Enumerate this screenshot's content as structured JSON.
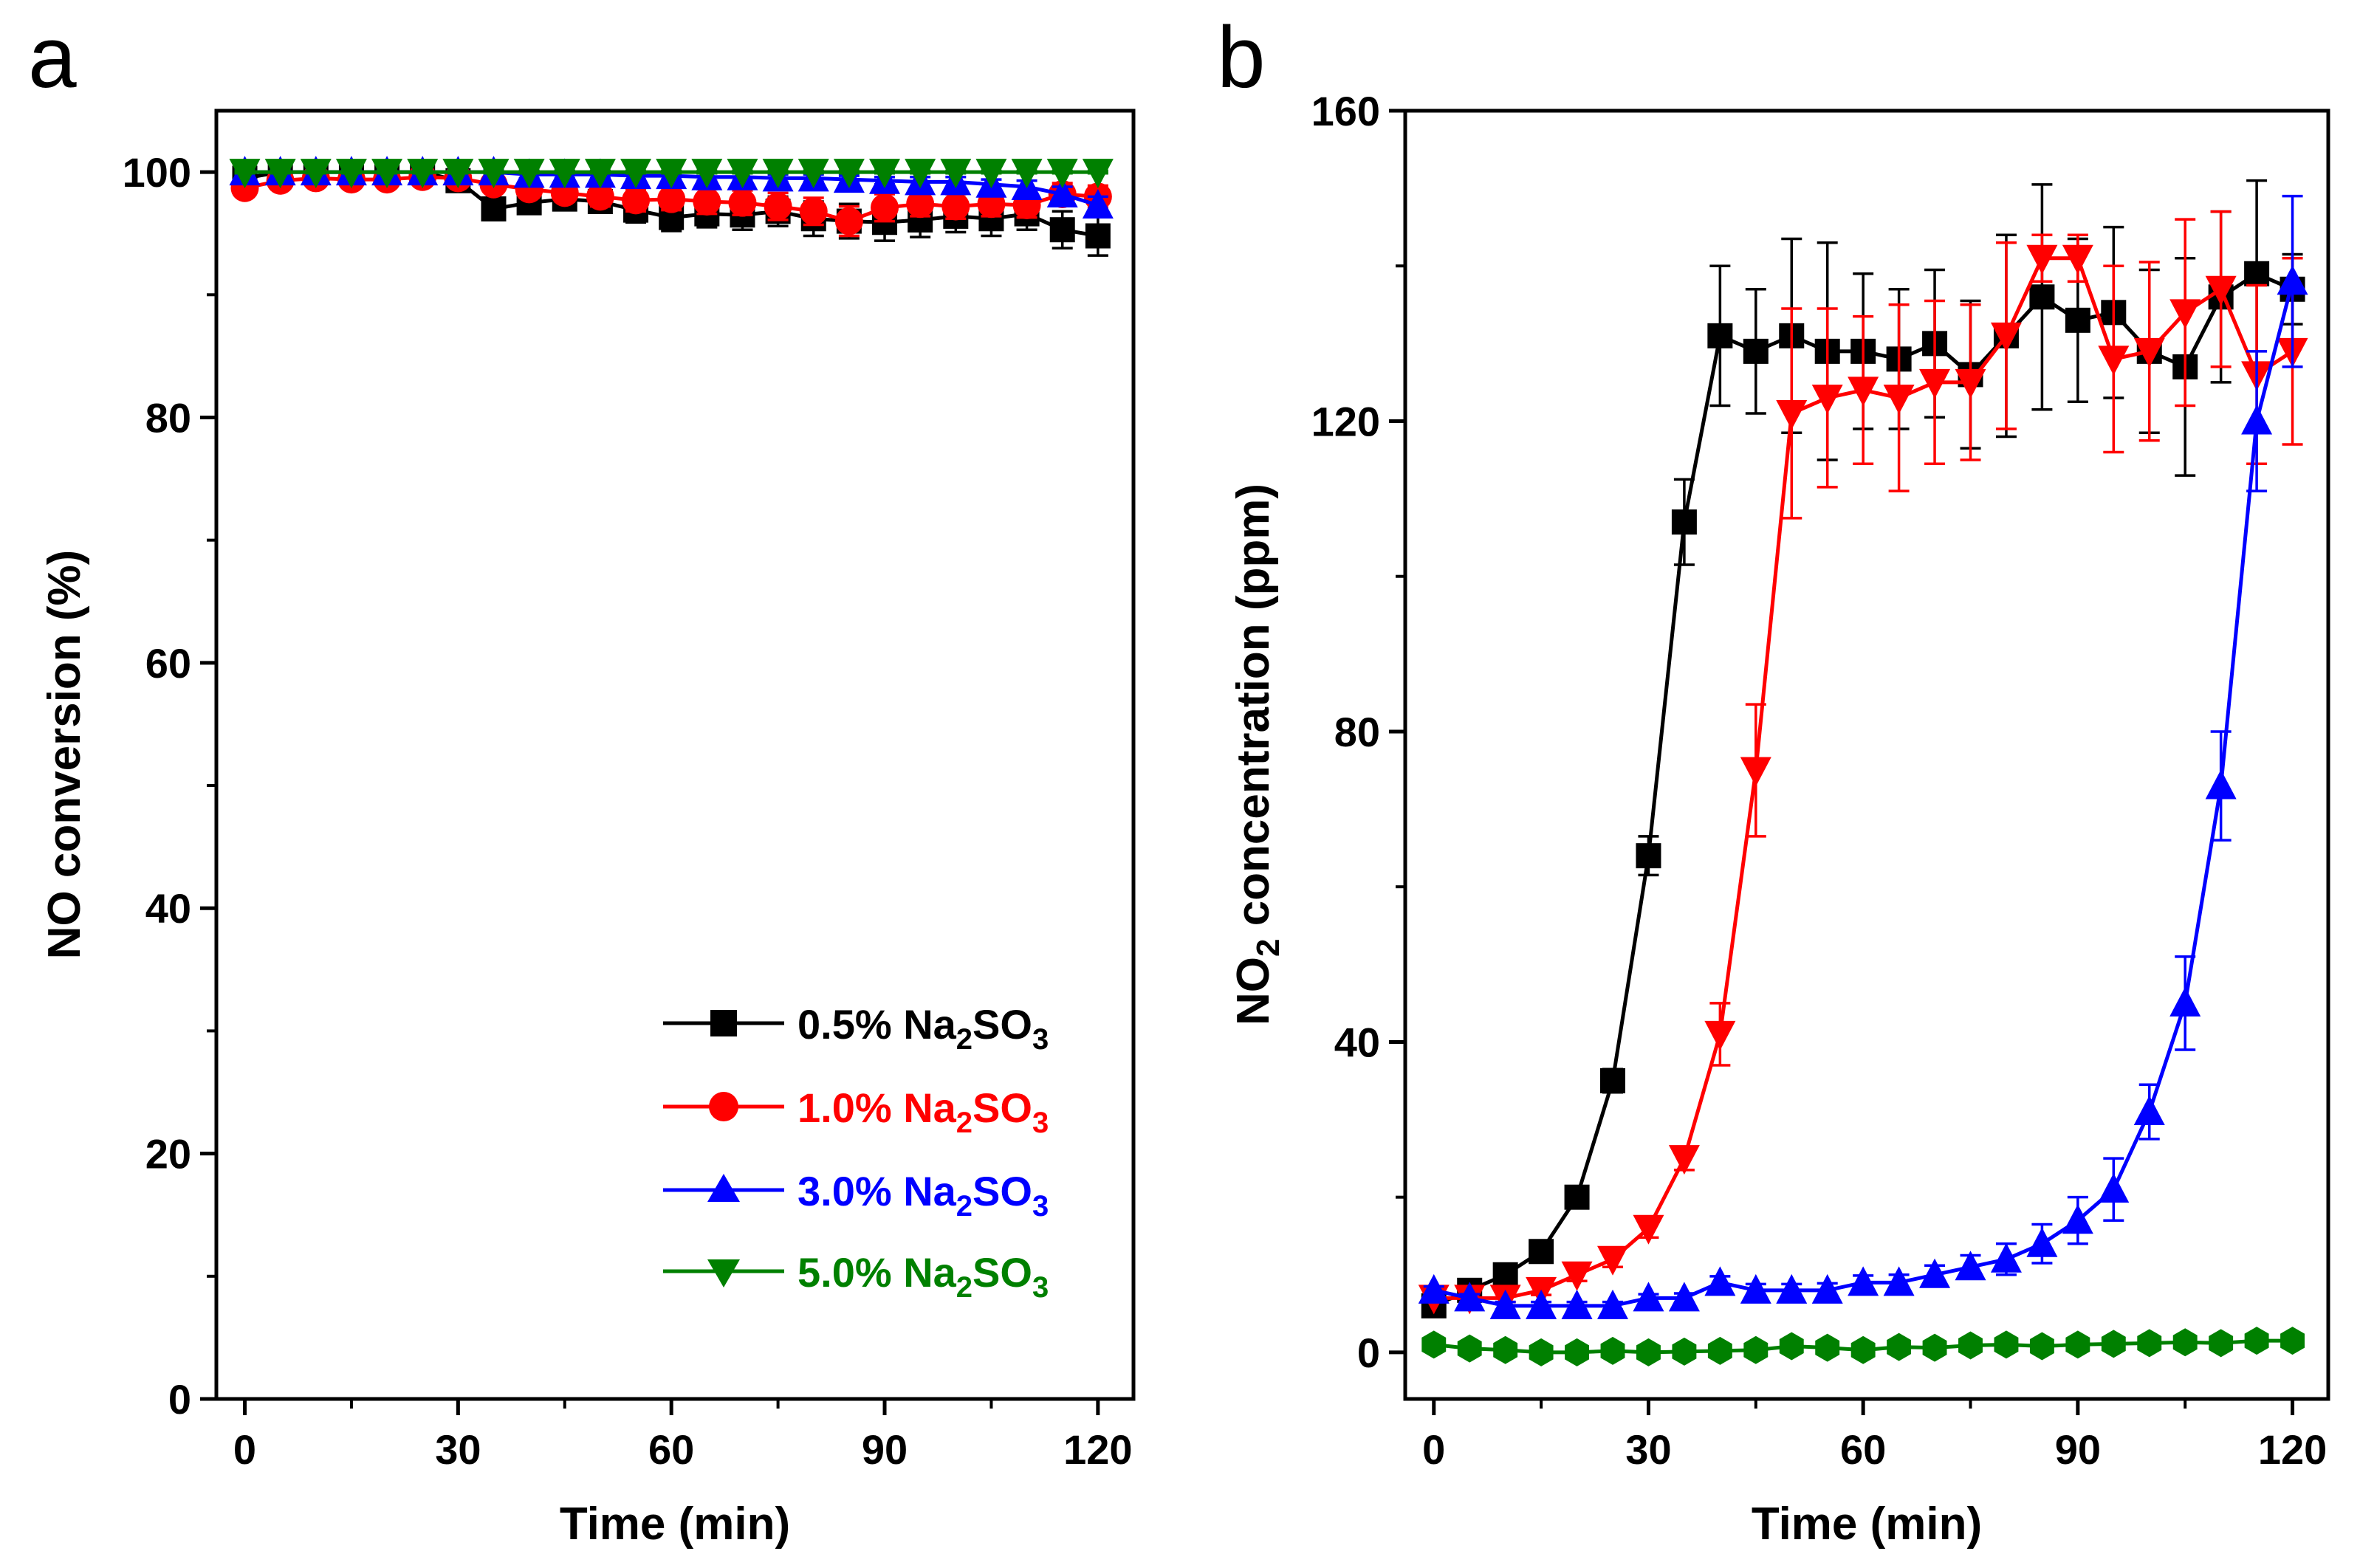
{
  "chart_data": [
    {
      "panel": "a",
      "type": "line",
      "title": "",
      "xlabel": "Time (min)",
      "ylabel": "NO conversion (%)",
      "xlim": [
        -4,
        125
      ],
      "ylim": [
        0,
        105
      ],
      "xticks": [
        0,
        30,
        60,
        90,
        120
      ],
      "yticks": [
        0,
        20,
        40,
        60,
        80,
        100
      ],
      "x": [
        0,
        5,
        10,
        15,
        20,
        25,
        30,
        35,
        40,
        45,
        50,
        55,
        60,
        65,
        70,
        75,
        80,
        85,
        90,
        95,
        100,
        105,
        110,
        115,
        120
      ],
      "legend_position": "bottom-right",
      "series": [
        {
          "name": "0.5% Na2SO3",
          "label_parts": {
            "pre": "0.5% Na",
            "sub1": "2",
            "mid": "SO",
            "sub2": "3"
          },
          "color": "#000000",
          "marker": "square",
          "values": [
            99.5,
            100,
            100,
            100,
            100,
            100,
            99.3,
            97.0,
            97.5,
            97.8,
            97.6,
            96.9,
            96.3,
            96.6,
            96.5,
            96.8,
            96.2,
            96.0,
            95.9,
            96.1,
            96.4,
            96.2,
            96.6,
            95.3,
            94.8
          ],
          "errors": [
            0.5,
            0.5,
            0.5,
            0.5,
            0.5,
            0.5,
            0.6,
            0.9,
            0.8,
            0.8,
            0.9,
            1.0,
            1.1,
            1.1,
            1.2,
            1.2,
            1.4,
            1.4,
            1.5,
            1.4,
            1.3,
            1.4,
            1.3,
            1.5,
            1.6
          ]
        },
        {
          "name": "1.0% Na2SO3",
          "label_parts": {
            "pre": "1.0% Na",
            "sub1": "2",
            "mid": "SO",
            "sub2": "3"
          },
          "color": "#ff0000",
          "marker": "circle",
          "values": [
            98.7,
            99.3,
            99.5,
            99.4,
            99.4,
            99.6,
            99.5,
            99.0,
            98.6,
            98.3,
            98.0,
            97.7,
            97.8,
            97.6,
            97.5,
            97.2,
            96.8,
            96.0,
            97.1,
            97.4,
            97.2,
            97.4,
            97.3,
            98.2,
            98.0
          ],
          "errors": [
            0.4,
            0.4,
            0.4,
            0.4,
            0.4,
            0.4,
            0.4,
            0.6,
            0.7,
            0.7,
            0.8,
            0.9,
            0.9,
            1.0,
            1.0,
            1.1,
            1.1,
            1.2,
            1.1,
            1.0,
            1.0,
            1.0,
            1.0,
            0.9,
            0.9
          ]
        },
        {
          "name": "3.0% Na2SO3",
          "label_parts": {
            "pre": "3.0% Na",
            "sub1": "2",
            "mid": "SO",
            "sub2": "3"
          },
          "color": "#0000ff",
          "marker": "triangle-up",
          "values": [
            100,
            100,
            100,
            100,
            100,
            100,
            100,
            100,
            99.8,
            99.8,
            99.8,
            99.7,
            99.7,
            99.6,
            99.6,
            99.5,
            99.5,
            99.4,
            99.3,
            99.2,
            99.2,
            99.0,
            98.8,
            98.2,
            97.3
          ],
          "errors": [
            0.2,
            0.2,
            0.2,
            0.2,
            0.2,
            0.2,
            0.2,
            0.2,
            0.3,
            0.3,
            0.3,
            0.3,
            0.3,
            0.3,
            0.3,
            0.3,
            0.3,
            0.3,
            0.3,
            0.4,
            0.4,
            0.4,
            0.5,
            0.6,
            0.7
          ]
        },
        {
          "name": "5.0% Na2SO3",
          "label_parts": {
            "pre": "5.0% Na",
            "sub1": "2",
            "mid": "SO",
            "sub2": "3"
          },
          "color": "#008000",
          "marker": "triangle-down",
          "values": [
            100,
            100,
            100,
            100,
            100,
            100,
            100,
            100,
            100,
            100,
            100,
            100,
            100,
            100,
            100,
            100,
            100,
            100,
            100,
            100,
            100,
            100,
            100,
            100,
            100
          ],
          "errors": [
            0.1,
            0.1,
            0.1,
            0.1,
            0.1,
            0.1,
            0.1,
            0.1,
            0.1,
            0.1,
            0.1,
            0.1,
            0.1,
            0.1,
            0.1,
            0.1,
            0.1,
            0.1,
            0.1,
            0.1,
            0.1,
            0.1,
            0.1,
            0.1,
            0.1
          ]
        }
      ]
    },
    {
      "panel": "b",
      "type": "line",
      "title": "",
      "xlabel": "Time (min)",
      "ylabel_parts": {
        "pre": "NO",
        "sub": "2",
        "post": " concentration (ppm)"
      },
      "xlim": [
        -4,
        125
      ],
      "ylim": [
        -6,
        160
      ],
      "xticks": [
        0,
        30,
        60,
        90,
        120
      ],
      "yticks": [
        0,
        40,
        80,
        120,
        160
      ],
      "x": [
        0,
        5,
        10,
        15,
        20,
        25,
        30,
        35,
        40,
        45,
        50,
        55,
        60,
        65,
        70,
        75,
        80,
        85,
        90,
        95,
        100,
        105,
        110,
        115,
        120
      ],
      "series": [
        {
          "name": "0.5% Na2SO3",
          "color": "#000000",
          "marker": "square",
          "values": [
            6,
            8,
            10,
            13,
            20,
            35,
            64,
            107,
            131,
            129,
            131,
            129,
            129,
            128,
            130,
            126,
            131,
            136,
            133,
            134,
            129,
            127,
            136,
            139,
            137
          ],
          "errors": [
            0.5,
            0.8,
            1.0,
            1.0,
            1.0,
            1.5,
            2.5,
            5.5,
            9.0,
            8.0,
            12.5,
            14.0,
            10.0,
            9.0,
            9.5,
            9.5,
            13.0,
            14.5,
            10.5,
            11.0,
            10.5,
            14.0,
            11.0,
            12.0,
            4.5
          ]
        },
        {
          "name": "1.0% Na2SO3",
          "color": "#ff0000",
          "marker": "triangle-down",
          "values": [
            7,
            7,
            7,
            8,
            10,
            12,
            16,
            25,
            41,
            75,
            121,
            123,
            124,
            123,
            125,
            125,
            131,
            141,
            141,
            128,
            129,
            134,
            137,
            126,
            129
          ],
          "errors": [
            0.5,
            0.5,
            0.5,
            0.6,
            0.8,
            1.0,
            1.2,
            1.5,
            4.0,
            8.5,
            13.5,
            11.5,
            9.5,
            12.0,
            10.5,
            10.0,
            12.0,
            3.0,
            3.0,
            12.0,
            11.5,
            12.0,
            10.0,
            11.5,
            12.0
          ]
        },
        {
          "name": "3.0% Na2SO3",
          "color": "#0000ff",
          "marker": "triangle-up",
          "values": [
            8,
            7,
            6,
            6,
            6,
            6,
            7,
            7,
            9,
            8,
            8,
            8,
            9,
            9,
            10,
            11,
            12,
            14,
            17,
            21,
            31,
            45,
            73,
            120,
            138
          ],
          "errors": [
            0.5,
            0.5,
            0.5,
            0.5,
            0.5,
            0.5,
            0.5,
            0.6,
            0.8,
            0.8,
            0.8,
            0.9,
            0.9,
            1.0,
            1.2,
            1.5,
            2.0,
            2.5,
            3.0,
            4.0,
            3.5,
            6.0,
            7.0,
            9.0,
            11.0
          ]
        },
        {
          "name": "5.0% Na2SO3",
          "color": "#008000",
          "marker": "hexagon",
          "values": [
            1,
            0.5,
            0.3,
            0,
            0,
            0.2,
            0,
            0.1,
            0.2,
            0.3,
            0.8,
            0.6,
            0.3,
            0.7,
            0.6,
            0.9,
            1.0,
            0.8,
            1.0,
            1.1,
            1.2,
            1.3,
            1.2,
            1.5,
            1.5
          ],
          "errors": [
            0.3,
            0.3,
            0.3,
            0.3,
            0.3,
            0.3,
            0.3,
            0.3,
            0.3,
            0.3,
            0.3,
            0.3,
            0.3,
            0.3,
            0.3,
            0.3,
            0.3,
            0.3,
            0.3,
            0.3,
            0.3,
            0.3,
            0.3,
            0.3,
            0.3
          ]
        }
      ]
    }
  ]
}
